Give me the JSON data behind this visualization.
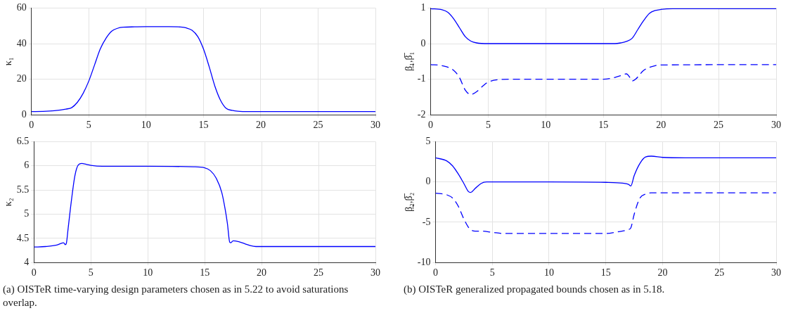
{
  "chart_data": [
    {
      "type": "line",
      "ylabel": "κ₁",
      "xlim": [
        0,
        30
      ],
      "xticks": [
        0,
        5,
        10,
        15,
        20,
        25,
        30
      ],
      "ylim": [
        0,
        60
      ],
      "yticks": [
        0,
        20,
        40,
        60
      ],
      "grid": true,
      "legend": false,
      "marker": "none",
      "series": [
        {
          "color": "#0000ff",
          "line_style": "solid",
          "x": [
            0,
            1,
            2,
            3,
            3.5,
            4,
            4.5,
            5,
            5.5,
            6,
            6.5,
            7,
            7.5,
            8,
            9,
            10,
            12,
            13,
            13.5,
            14,
            14.5,
            15,
            15.5,
            16,
            16.5,
            17,
            17.5,
            18,
            19,
            20,
            30
          ],
          "values": [
            1.8,
            1.9,
            2.3,
            3.2,
            4,
            7,
            12,
            19,
            28,
            37,
            43,
            47,
            48.6,
            49.2,
            49.4,
            49.5,
            49.5,
            49.3,
            48.8,
            47.5,
            44,
            37,
            27,
            16,
            8,
            3.5,
            2.5,
            2,
            1.8,
            1.8,
            1.8
          ]
        }
      ]
    },
    {
      "type": "line",
      "ylabel": "β̲₁,β̅₁",
      "xlim": [
        0,
        30
      ],
      "xticks": [
        0,
        5,
        10,
        15,
        20,
        25,
        30
      ],
      "ylim": [
        -2,
        1
      ],
      "yticks": [
        -2,
        -1,
        0,
        1
      ],
      "grid": true,
      "legend": false,
      "marker": "none",
      "series": [
        {
          "color": "#0000ff",
          "line_style": "solid",
          "x": [
            0,
            1,
            1.5,
            2,
            2.5,
            3,
            3.5,
            4,
            5,
            16,
            16.5,
            17,
            17.5,
            18,
            18.5,
            19,
            19.5,
            20,
            21,
            30
          ],
          "values": [
            0.98,
            0.95,
            0.88,
            0.7,
            0.45,
            0.2,
            0.07,
            0.02,
            0,
            0,
            0.02,
            0.06,
            0.15,
            0.4,
            0.65,
            0.85,
            0.93,
            0.96,
            0.98,
            0.98
          ]
        },
        {
          "color": "#0000ff",
          "line_style": "dashed",
          "x": [
            0,
            1,
            2,
            2.5,
            3,
            3.5,
            4,
            4.5,
            5,
            6,
            7,
            15,
            16,
            16.5,
            17,
            17.3,
            17.5,
            17.8,
            18.5,
            19.5,
            20,
            30
          ],
          "values": [
            -0.59,
            -0.62,
            -0.75,
            -0.95,
            -1.3,
            -1.43,
            -1.35,
            -1.2,
            -1.08,
            -1.01,
            -1,
            -1,
            -0.95,
            -0.9,
            -0.85,
            -0.95,
            -1.05,
            -1,
            -0.75,
            -0.62,
            -0.6,
            -0.59
          ]
        }
      ]
    },
    {
      "type": "line",
      "ylabel": "κ₂",
      "xlim": [
        0,
        30
      ],
      "xticks": [
        0,
        5,
        10,
        15,
        20,
        25,
        30
      ],
      "ylim": [
        4,
        6.5
      ],
      "yticks": [
        4,
        4.5,
        5,
        5.5,
        6,
        6.5
      ],
      "grid": true,
      "legend": false,
      "marker": "none",
      "annotations": [
        "(a) OISTeR time-varying design parameters chosen as in 5.22 to avoid saturations overlap."
      ],
      "series": [
        {
          "color": "#0000ff",
          "line_style": "solid",
          "x": [
            0,
            1,
            2,
            2.6,
            2.75,
            2.85,
            3,
            3.3,
            3.6,
            3.9,
            4.2,
            4.6,
            5,
            6,
            10,
            14,
            15,
            15.5,
            16,
            16.5,
            16.8,
            17,
            17.2,
            17.3,
            17.5,
            18,
            18.5,
            19,
            19.5,
            20,
            30
          ],
          "values": [
            4.32,
            4.33,
            4.36,
            4.41,
            4.37,
            4.4,
            4.7,
            5.3,
            5.8,
            6.02,
            6.05,
            6.03,
            6.01,
            5.99,
            5.99,
            5.98,
            5.96,
            5.9,
            5.75,
            5.45,
            5.1,
            4.8,
            4.42,
            4.41,
            4.45,
            4.43,
            4.39,
            4.35,
            4.33,
            4.33,
            4.33
          ]
        }
      ]
    },
    {
      "type": "line",
      "ylabel": "β̲₂,β̅₂",
      "xlim": [
        0,
        30
      ],
      "xticks": [
        0,
        5,
        10,
        15,
        20,
        25,
        30
      ],
      "ylim": [
        -10,
        5
      ],
      "yticks": [
        -10,
        -5,
        0,
        5
      ],
      "grid": true,
      "legend": false,
      "marker": "none",
      "annotations": [
        "(b) OISTeR generalized propagated bounds chosen as in 5.18."
      ],
      "series": [
        {
          "color": "#0000ff",
          "line_style": "solid",
          "x": [
            0,
            1,
            1.5,
            2,
            2.5,
            2.9,
            3.1,
            3.5,
            4,
            4.5,
            10,
            15,
            16,
            17,
            17.2,
            17.5,
            18,
            18.5,
            19,
            20,
            22,
            30
          ],
          "values": [
            3,
            2.6,
            2,
            1,
            -0.2,
            -1.2,
            -1.3,
            -0.8,
            -0.2,
            0,
            0,
            -0.05,
            -0.1,
            -0.3,
            -0.5,
            0.8,
            2.3,
            3.1,
            3.2,
            3.05,
            3,
            3
          ]
        },
        {
          "color": "#0000ff",
          "line_style": "dashed",
          "x": [
            0,
            1,
            1.5,
            2,
            2.5,
            3,
            3.5,
            4,
            5,
            6,
            10,
            15,
            16,
            17,
            17.2,
            17.5,
            18,
            18.5,
            19,
            30
          ],
          "values": [
            -1.4,
            -1.6,
            -2,
            -3,
            -4.6,
            -5.8,
            -6.1,
            -6.1,
            -6.25,
            -6.4,
            -6.4,
            -6.4,
            -6.2,
            -5.9,
            -5.7,
            -4,
            -2,
            -1.5,
            -1.35,
            -1.35
          ]
        }
      ]
    }
  ]
}
